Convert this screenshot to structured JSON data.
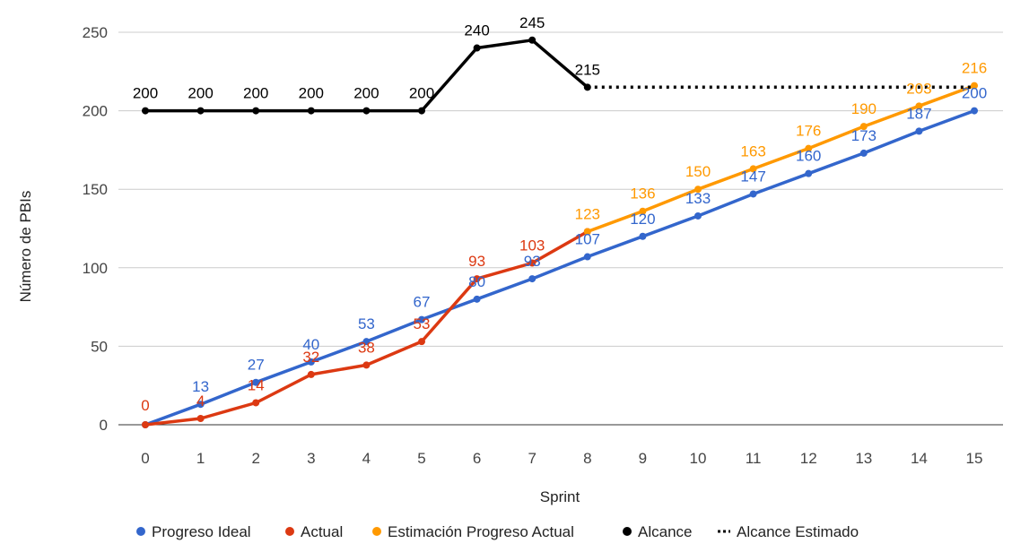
{
  "chart_data": {
    "type": "line",
    "xlabel": "Sprint",
    "ylabel": "Número de PBIs",
    "ylim": [
      0,
      250
    ],
    "yticks": [
      0,
      50,
      100,
      150,
      200,
      250
    ],
    "x": [
      0,
      1,
      2,
      3,
      4,
      5,
      6,
      7,
      8,
      9,
      10,
      11,
      12,
      13,
      14,
      15
    ],
    "grid": "horizontal",
    "legend_position": "bottom",
    "series": [
      {
        "name": "Progreso Ideal",
        "color": "#3366cc",
        "style": "solid",
        "x": [
          0,
          1,
          2,
          3,
          4,
          5,
          6,
          7,
          8,
          9,
          10,
          11,
          12,
          13,
          14,
          15
        ],
        "values": [
          0,
          13,
          27,
          40,
          53,
          67,
          80,
          93,
          107,
          120,
          133,
          147,
          160,
          173,
          187,
          200
        ]
      },
      {
        "name": "Actual",
        "color": "#dc3912",
        "style": "solid",
        "x": [
          0,
          1,
          2,
          3,
          4,
          5,
          6,
          7,
          8
        ],
        "values": [
          0,
          4,
          14,
          32,
          38,
          53,
          93,
          103,
          123
        ]
      },
      {
        "name": "Estimación Progreso Actual",
        "color": "#ff9900",
        "style": "solid",
        "x": [
          8,
          9,
          10,
          11,
          12,
          13,
          14,
          15
        ],
        "values": [
          123,
          136,
          150,
          163,
          176,
          190,
          203,
          216
        ]
      },
      {
        "name": "Alcance",
        "color": "#000000",
        "style": "solid",
        "x": [
          0,
          1,
          2,
          3,
          4,
          5,
          6,
          7,
          8
        ],
        "values": [
          200,
          200,
          200,
          200,
          200,
          200,
          240,
          245,
          215
        ]
      },
      {
        "name": "Alcance Estimado",
        "color": "#000000",
        "style": "dotted",
        "x": [
          8,
          15
        ],
        "values": [
          215,
          215
        ]
      }
    ],
    "data_labels": [
      {
        "series": 0,
        "values": [
          13,
          27,
          40,
          53,
          67,
          80,
          93,
          107,
          120,
          133,
          147,
          160,
          173,
          187,
          200
        ],
        "x": [
          1,
          2,
          3,
          4,
          5,
          6,
          7,
          8,
          9,
          10,
          11,
          12,
          13,
          14,
          15
        ]
      },
      {
        "series": 1,
        "values": [
          0,
          4,
          14,
          32,
          38,
          53,
          93,
          103
        ],
        "x": [
          0,
          1,
          2,
          3,
          4,
          5,
          6,
          7
        ]
      },
      {
        "series": 2,
        "values": [
          123,
          136,
          150,
          163,
          176,
          190,
          203,
          216
        ],
        "x": [
          8,
          9,
          10,
          11,
          12,
          13,
          14,
          15
        ]
      },
      {
        "series": 3,
        "values": [
          200,
          200,
          200,
          200,
          200,
          200,
          240,
          245,
          215
        ],
        "x": [
          0,
          1,
          2,
          3,
          4,
          5,
          6,
          7,
          8
        ]
      }
    ]
  }
}
